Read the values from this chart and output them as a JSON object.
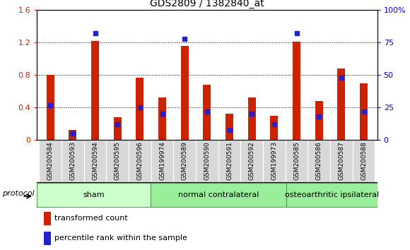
{
  "title": "GDS2809 / 1382840_at",
  "categories": [
    "GSM200584",
    "GSM200593",
    "GSM200594",
    "GSM200595",
    "GSM200596",
    "GSM199974",
    "GSM200589",
    "GSM200590",
    "GSM200591",
    "GSM200592",
    "GSM199973",
    "GSM200585",
    "GSM200586",
    "GSM200587",
    "GSM200588"
  ],
  "red_values": [
    0.8,
    0.12,
    1.22,
    0.28,
    0.77,
    0.52,
    1.16,
    0.68,
    0.32,
    0.52,
    0.3,
    1.21,
    0.48,
    0.88,
    0.7
  ],
  "blue_values_pct": [
    27,
    5,
    82,
    12,
    25,
    20,
    78,
    22,
    8,
    20,
    12,
    82,
    18,
    48,
    22
  ],
  "ylim_left": [
    0,
    1.6
  ],
  "ylim_right": [
    0,
    100
  ],
  "yticks_left": [
    0,
    0.4,
    0.8,
    1.2,
    1.6
  ],
  "ytick_labels_left": [
    "0",
    "0.4",
    "0.8",
    "1.2",
    "1.6"
  ],
  "yticks_right": [
    0,
    25,
    50,
    75,
    100
  ],
  "ytick_labels_right": [
    "0",
    "25",
    "50",
    "75",
    "100%"
  ],
  "groups": [
    {
      "label": "sham",
      "start": 0,
      "end": 5
    },
    {
      "label": "normal contralateral",
      "start": 5,
      "end": 11
    },
    {
      "label": "osteoarthritic ipsilateral",
      "start": 11,
      "end": 15
    }
  ],
  "group_light_color": "#ccffcc",
  "group_mid_color": "#99ee99",
  "group_dark_color": "#66cc66",
  "group_border_color": "#44aa44",
  "protocol_label": "protocol",
  "red_color": "#cc2200",
  "blue_color": "#2222cc",
  "bar_width": 0.35,
  "tick_label_color_left": "#cc2200",
  "tick_label_color_right": "#0000cc"
}
